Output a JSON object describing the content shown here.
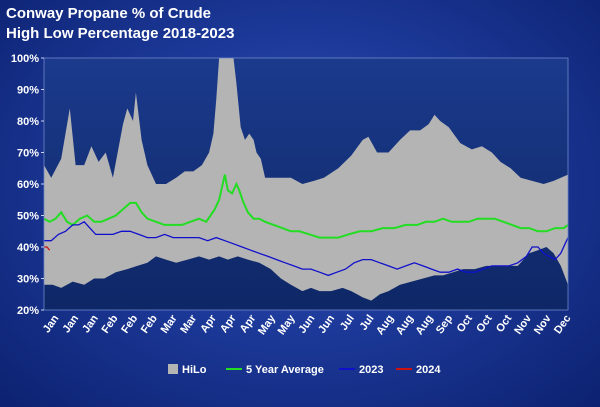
{
  "chart_data": {
    "type": "area",
    "title": "Conway Propane % of Crude",
    "subtitle": "High Low Percentage 2018-2023",
    "xlabel": "",
    "ylabel": "",
    "ylim": [
      20,
      100
    ],
    "yticks": [
      "20%",
      "30%",
      "40%",
      "50%",
      "60%",
      "70%",
      "80%",
      "90%",
      "100%"
    ],
    "xticks": [
      "Jan",
      "Jan",
      "Jan",
      "Feb",
      "Feb",
      "Feb",
      "Mar",
      "Mar",
      "Apr",
      "Apr",
      "Apr",
      "May",
      "May",
      "Jun",
      "Jun",
      "Jul",
      "Jul",
      "Aug",
      "Aug",
      "Aug",
      "Sep",
      "Oct",
      "Oct",
      "Oct",
      "Nov",
      "Nov",
      "Dec"
    ],
    "x_range": [
      0,
      365
    ],
    "grid": false,
    "legend_position": "bottom",
    "series": [
      {
        "name": "HiLo",
        "color": "#b4b4b4",
        "high": [
          [
            0,
            66
          ],
          [
            5,
            62
          ],
          [
            12,
            68
          ],
          [
            18,
            84
          ],
          [
            22,
            66
          ],
          [
            28,
            66
          ],
          [
            33,
            72
          ],
          [
            38,
            67
          ],
          [
            43,
            70
          ],
          [
            48,
            62
          ],
          [
            55,
            79
          ],
          [
            58,
            84
          ],
          [
            62,
            80
          ],
          [
            64,
            89
          ],
          [
            68,
            74
          ],
          [
            72,
            66
          ],
          [
            78,
            60
          ],
          [
            85,
            60
          ],
          [
            92,
            62
          ],
          [
            98,
            64
          ],
          [
            104,
            64
          ],
          [
            110,
            66
          ],
          [
            115,
            70
          ],
          [
            118,
            76
          ],
          [
            120,
            87
          ],
          [
            122,
            100
          ],
          [
            127,
            100
          ],
          [
            132,
            100
          ],
          [
            134,
            92
          ],
          [
            137,
            78
          ],
          [
            140,
            74
          ],
          [
            143,
            76
          ],
          [
            146,
            74
          ],
          [
            148,
            70
          ],
          [
            151,
            68
          ],
          [
            154,
            62
          ],
          [
            158,
            62
          ],
          [
            165,
            62
          ],
          [
            172,
            62
          ],
          [
            180,
            60
          ],
          [
            188,
            61
          ],
          [
            195,
            62
          ],
          [
            205,
            65
          ],
          [
            214,
            69
          ],
          [
            222,
            74
          ],
          [
            226,
            75
          ],
          [
            232,
            70
          ],
          [
            240,
            70
          ],
          [
            248,
            74
          ],
          [
            255,
            77
          ],
          [
            262,
            77
          ],
          [
            268,
            79
          ],
          [
            272,
            82
          ],
          [
            276,
            80
          ],
          [
            282,
            78
          ],
          [
            290,
            73
          ],
          [
            298,
            71
          ],
          [
            305,
            72
          ],
          [
            312,
            70
          ],
          [
            318,
            67
          ],
          [
            325,
            65
          ],
          [
            332,
            62
          ],
          [
            340,
            61
          ],
          [
            348,
            60
          ],
          [
            355,
            61
          ],
          [
            360,
            62
          ],
          [
            365,
            63
          ]
        ],
        "low": [
          [
            0,
            28
          ],
          [
            6,
            28
          ],
          [
            12,
            27
          ],
          [
            20,
            29
          ],
          [
            28,
            28
          ],
          [
            35,
            30
          ],
          [
            42,
            30
          ],
          [
            50,
            32
          ],
          [
            58,
            33
          ],
          [
            65,
            34
          ],
          [
            72,
            35
          ],
          [
            78,
            37
          ],
          [
            85,
            36
          ],
          [
            92,
            35
          ],
          [
            100,
            36
          ],
          [
            108,
            37
          ],
          [
            115,
            36
          ],
          [
            122,
            37
          ],
          [
            128,
            36
          ],
          [
            135,
            37
          ],
          [
            142,
            36
          ],
          [
            150,
            35
          ],
          [
            158,
            33
          ],
          [
            165,
            30
          ],
          [
            172,
            28
          ],
          [
            180,
            26
          ],
          [
            186,
            27
          ],
          [
            192,
            26
          ],
          [
            200,
            26
          ],
          [
            208,
            27
          ],
          [
            214,
            26
          ],
          [
            218,
            25
          ],
          [
            222,
            24
          ],
          [
            228,
            23
          ],
          [
            234,
            25
          ],
          [
            240,
            26
          ],
          [
            248,
            28
          ],
          [
            256,
            29
          ],
          [
            264,
            30
          ],
          [
            272,
            31
          ],
          [
            278,
            31
          ],
          [
            285,
            32
          ],
          [
            292,
            33
          ],
          [
            300,
            33
          ],
          [
            308,
            34
          ],
          [
            315,
            34
          ],
          [
            322,
            34
          ],
          [
            330,
            34
          ],
          [
            338,
            38
          ],
          [
            344,
            39
          ],
          [
            350,
            40
          ],
          [
            355,
            38
          ],
          [
            360,
            34
          ],
          [
            365,
            28
          ]
        ]
      },
      {
        "name": "5 Year Average",
        "color": "#22dd22",
        "values": [
          [
            0,
            49
          ],
          [
            4,
            48
          ],
          [
            8,
            49
          ],
          [
            12,
            51
          ],
          [
            16,
            48
          ],
          [
            20,
            47
          ],
          [
            25,
            49
          ],
          [
            30,
            50
          ],
          [
            35,
            48
          ],
          [
            40,
            48
          ],
          [
            45,
            49
          ],
          [
            50,
            50
          ],
          [
            55,
            52
          ],
          [
            60,
            54
          ],
          [
            64,
            54
          ],
          [
            68,
            51
          ],
          [
            72,
            49
          ],
          [
            78,
            48
          ],
          [
            84,
            47
          ],
          [
            90,
            47
          ],
          [
            96,
            47
          ],
          [
            102,
            48
          ],
          [
            108,
            49
          ],
          [
            113,
            48
          ],
          [
            116,
            50
          ],
          [
            119,
            52
          ],
          [
            122,
            55
          ],
          [
            124,
            59
          ],
          [
            126,
            63
          ],
          [
            128,
            58
          ],
          [
            131,
            57
          ],
          [
            134,
            60
          ],
          [
            136,
            58
          ],
          [
            139,
            54
          ],
          [
            142,
            51
          ],
          [
            146,
            49
          ],
          [
            150,
            49
          ],
          [
            154,
            48
          ],
          [
            160,
            47
          ],
          [
            166,
            46
          ],
          [
            172,
            45
          ],
          [
            178,
            45
          ],
          [
            185,
            44
          ],
          [
            192,
            43
          ],
          [
            198,
            43
          ],
          [
            205,
            43
          ],
          [
            212,
            44
          ],
          [
            220,
            45
          ],
          [
            228,
            45
          ],
          [
            236,
            46
          ],
          [
            244,
            46
          ],
          [
            252,
            47
          ],
          [
            260,
            47
          ],
          [
            266,
            48
          ],
          [
            272,
            48
          ],
          [
            278,
            49
          ],
          [
            284,
            48
          ],
          [
            290,
            48
          ],
          [
            296,
            48
          ],
          [
            302,
            49
          ],
          [
            308,
            49
          ],
          [
            314,
            49
          ],
          [
            320,
            48
          ],
          [
            326,
            47
          ],
          [
            332,
            46
          ],
          [
            338,
            46
          ],
          [
            344,
            45
          ],
          [
            350,
            45
          ],
          [
            356,
            46
          ],
          [
            362,
            46
          ],
          [
            365,
            47
          ]
        ]
      },
      {
        "name": "2023",
        "color": "#1010cc",
        "values": [
          [
            0,
            42
          ],
          [
            5,
            42
          ],
          [
            10,
            44
          ],
          [
            15,
            45
          ],
          [
            20,
            47
          ],
          [
            24,
            47
          ],
          [
            28,
            48
          ],
          [
            32,
            46
          ],
          [
            36,
            44
          ],
          [
            42,
            44
          ],
          [
            48,
            44
          ],
          [
            54,
            45
          ],
          [
            60,
            45
          ],
          [
            66,
            44
          ],
          [
            72,
            43
          ],
          [
            78,
            43
          ],
          [
            84,
            44
          ],
          [
            90,
            43
          ],
          [
            96,
            43
          ],
          [
            102,
            43
          ],
          [
            108,
            43
          ],
          [
            114,
            42
          ],
          [
            120,
            43
          ],
          [
            126,
            42
          ],
          [
            132,
            41
          ],
          [
            138,
            40
          ],
          [
            144,
            39
          ],
          [
            150,
            38
          ],
          [
            156,
            37
          ],
          [
            162,
            36
          ],
          [
            168,
            35
          ],
          [
            174,
            34
          ],
          [
            180,
            33
          ],
          [
            186,
            33
          ],
          [
            192,
            32
          ],
          [
            198,
            31
          ],
          [
            204,
            32
          ],
          [
            210,
            33
          ],
          [
            216,
            35
          ],
          [
            222,
            36
          ],
          [
            228,
            36
          ],
          [
            234,
            35
          ],
          [
            240,
            34
          ],
          [
            246,
            33
          ],
          [
            252,
            34
          ],
          [
            258,
            35
          ],
          [
            264,
            34
          ],
          [
            270,
            33
          ],
          [
            276,
            32
          ],
          [
            282,
            32
          ],
          [
            288,
            33
          ],
          [
            294,
            32
          ],
          [
            300,
            32
          ],
          [
            306,
            33
          ],
          [
            312,
            34
          ],
          [
            318,
            34
          ],
          [
            324,
            34
          ],
          [
            330,
            35
          ],
          [
            336,
            37
          ],
          [
            340,
            40
          ],
          [
            344,
            40
          ],
          [
            348,
            38
          ],
          [
            352,
            37
          ],
          [
            356,
            36
          ],
          [
            360,
            38
          ],
          [
            363,
            41
          ],
          [
            365,
            43
          ]
        ]
      },
      {
        "name": "2024",
        "color": "#cc1111",
        "values": [
          [
            0,
            40
          ],
          [
            2,
            40
          ],
          [
            4,
            39
          ]
        ]
      }
    ]
  }
}
